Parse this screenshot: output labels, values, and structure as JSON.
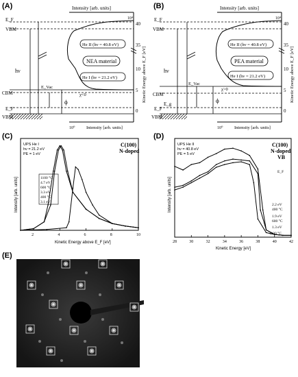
{
  "figure": {
    "panels": [
      {
        "id": "A",
        "label": "(A)",
        "material": "NEA material",
        "top_axis": "Intensity [arb. units]",
        "right_axis": "Kinetic Energy above E_F [eV]",
        "bottom_axis": "Intensity [arb. units]",
        "top_mult": "10⁴",
        "bottom_mult": "10⁰",
        "he2": "He II (hν = 40.8 eV)",
        "he1": "He I (hν = 21.2 eV)",
        "chi": "χ<0",
        "ef": "E_F",
        "vbm": "VBM",
        "cbm": "CBM",
        "hv": "hν",
        "evac": "E_Vac",
        "phi": "ϕ",
        "right_ticks": [
          "40",
          "35",
          "10",
          "5",
          "0"
        ]
      },
      {
        "id": "B",
        "label": "(B)",
        "material": "PEA material",
        "top_axis": "Intensity [arb. units]",
        "right_axis": "Kinetic Energy above E_F [eV]",
        "bottom_axis": "Intensity [arb. units]",
        "top_mult": "10⁴",
        "bottom_mult": "10⁰",
        "he2": "He II (hν = 40.8 eV)",
        "he1": "He I (hν = 21.2 eV)",
        "chi": "χ>0",
        "ef": "E_F",
        "vbm": "VBM",
        "cbm": "CBM",
        "hv": "hν",
        "evac": "E_Vac",
        "phi": "ϕ",
        "eg": "E_g",
        "right_ticks": [
          "40",
          "35",
          "10",
          "5",
          "0"
        ]
      }
    ],
    "panel_C": {
      "label": "(C)",
      "title_line1": "C(100)",
      "title_line2": "N-doped",
      "info": [
        "UPS He I",
        "hν = 21.2 eV",
        "PE = 1 eV"
      ],
      "ylabel": "Intensity [arb. units]",
      "annotations": [
        "1100 °C",
        "4.7 eV",
        "600 °C",
        "3.3 eV",
        "400 °C",
        "3.1 eV"
      ]
    },
    "panel_D": {
      "label": "(D)",
      "title_line1": "C(100)",
      "title_line2": "N-doped",
      "title_line3": "VB",
      "info": [
        "UPS He II",
        "hν = 40.8 eV",
        "PE = 5 eV"
      ],
      "ylabel": "Intensity [arb. units]",
      "ef": "E_F",
      "annotations": [
        "2.2 eV",
        "400 °C",
        "1.9 eV",
        "600 °C",
        "1.3 eV",
        "1100 °C"
      ]
    },
    "panel_E": {
      "label": "(E)"
    }
  },
  "chart_data": [
    {
      "type": "line",
      "panel": "C",
      "xlabel": "Kinetic Energy above E_F [eV]",
      "ylabel": "Intensity [arb. units]",
      "xlim": [
        1,
        10
      ],
      "x_ticks": [
        "2",
        "4",
        "6",
        "8",
        "10"
      ],
      "series": [
        {
          "name": "400 °C",
          "x": [
            1,
            2,
            2.8,
            3.1,
            3.5,
            3.8,
            4.0,
            4.2,
            4.5,
            5,
            6,
            7,
            8,
            9,
            10
          ],
          "values": [
            0,
            0.02,
            0.1,
            0.3,
            0.7,
            0.95,
            1.0,
            0.95,
            0.7,
            0.45,
            0.25,
            0.14,
            0.08,
            0.05,
            0.03
          ]
        },
        {
          "name": "600 °C",
          "x": [
            1,
            2,
            2.8,
            3.3,
            3.6,
            3.9,
            4.1,
            4.3,
            4.6,
            5,
            6,
            7,
            8,
            9,
            10
          ],
          "values": [
            0,
            0.02,
            0.1,
            0.3,
            0.7,
            0.95,
            1.0,
            0.95,
            0.7,
            0.45,
            0.25,
            0.14,
            0.08,
            0.05,
            0.03
          ]
        },
        {
          "name": "1100 °C",
          "x": [
            1,
            3,
            4.5,
            4.7,
            5.0,
            5.2,
            5.4,
            5.7,
            6,
            6.5,
            7,
            8,
            9,
            10
          ],
          "values": [
            0,
            0.01,
            0.03,
            0.1,
            0.5,
            0.75,
            0.72,
            0.6,
            0.45,
            0.3,
            0.18,
            0.08,
            0.05,
            0.03
          ]
        }
      ]
    },
    {
      "type": "line",
      "panel": "D",
      "xlabel": "Kinetic Energy [eV]",
      "ylabel": "Intensity [arb. units]",
      "xlim": [
        28,
        42
      ],
      "x_ticks": [
        "28",
        "30",
        "32",
        "34",
        "36",
        "38",
        "40",
        "42"
      ],
      "series": [
        {
          "name": "400 °C",
          "x": [
            28,
            29,
            30,
            31,
            32,
            33,
            34,
            35,
            36,
            37,
            38,
            38.6,
            39,
            40,
            41,
            42
          ],
          "values": [
            0.78,
            0.74,
            0.8,
            0.82,
            0.88,
            0.92,
            0.97,
            0.98,
            0.95,
            0.9,
            0.75,
            0.3,
            0.08,
            0.03,
            0.02,
            0.02
          ]
        },
        {
          "name": "600 °C",
          "x": [
            28,
            29,
            30,
            31,
            32,
            33,
            34,
            35,
            36,
            37,
            38,
            38.3,
            39,
            40,
            41,
            42
          ],
          "values": [
            0.55,
            0.57,
            0.62,
            0.68,
            0.72,
            0.8,
            0.84,
            0.86,
            0.85,
            0.84,
            0.7,
            0.3,
            0.08,
            0.03,
            0.02,
            0.02
          ]
        },
        {
          "name": "1100 °C",
          "x": [
            28,
            29,
            30,
            31,
            32,
            33,
            34,
            35,
            36,
            37,
            37.5,
            38,
            39,
            40,
            41,
            42
          ],
          "values": [
            0.52,
            0.55,
            0.6,
            0.65,
            0.7,
            0.77,
            0.8,
            0.82,
            0.83,
            0.8,
            0.6,
            0.2,
            0.05,
            0.03,
            0.02,
            0.02
          ]
        }
      ]
    }
  ]
}
